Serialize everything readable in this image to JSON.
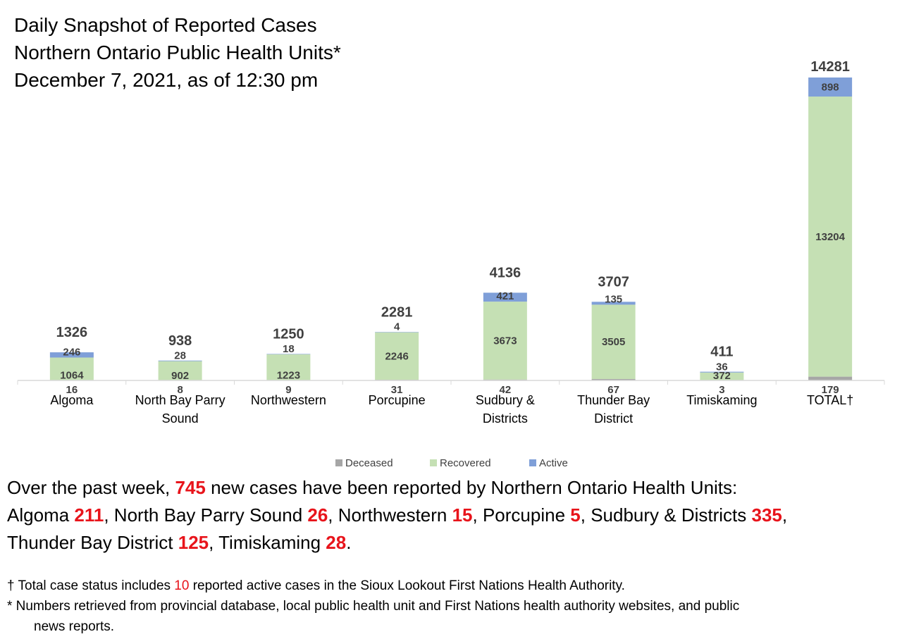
{
  "title": {
    "line1": "Daily Snapshot of Reported Cases",
    "line2": "Northern Ontario Public Health Units*",
    "line3": "December 7, 2021, as of 12:30 pm"
  },
  "chart_data": {
    "type": "bar",
    "stacked": true,
    "categories": [
      "Algoma",
      "North Bay Parry Sound",
      "Northwestern",
      "Porcupine",
      "Sudbury & Districts",
      "Thunder Bay District",
      "Timiskaming",
      "TOTAL†"
    ],
    "category_lines": [
      [
        "Algoma"
      ],
      [
        "North Bay Parry",
        "Sound"
      ],
      [
        "Northwestern"
      ],
      [
        "Porcupine"
      ],
      [
        "Sudbury &",
        "Districts"
      ],
      [
        "Thunder Bay",
        "District"
      ],
      [
        "Timiskaming"
      ],
      [
        "TOTAL†"
      ]
    ],
    "series": [
      {
        "name": "Deceased",
        "color": "#a6a6a6",
        "values": [
          16,
          8,
          9,
          31,
          42,
          67,
          3,
          179
        ]
      },
      {
        "name": "Recovered",
        "color": "#c5e0b4",
        "values": [
          1064,
          902,
          1223,
          2246,
          3673,
          3505,
          372,
          13204
        ]
      },
      {
        "name": "Active",
        "color": "#7f9fd8",
        "values": [
          246,
          28,
          18,
          4,
          421,
          135,
          36,
          898
        ]
      }
    ],
    "totals": [
      1326,
      938,
      1250,
      2281,
      4136,
      3707,
      411,
      14281
    ],
    "ylim": [
      0,
      14281
    ],
    "grid": false,
    "legend": "bottom"
  },
  "summary": {
    "line1_pre": "Over the past week, ",
    "line1_num": "745",
    "line1_post": " new cases have been reported by Northern Ontario Health Units:",
    "items": [
      {
        "name": "Algoma ",
        "num": "211",
        "sep": ", "
      },
      {
        "name": "North Bay Parry Sound ",
        "num": "26",
        "sep": ", "
      },
      {
        "name": "Northwestern ",
        "num": "15",
        "sep": ", "
      },
      {
        "name": "Porcupine ",
        "num": "5",
        "sep": ", "
      },
      {
        "name": "Sudbury & Districts ",
        "num": "335",
        "sep": ","
      },
      {
        "name": "Thunder Bay District ",
        "num": "125",
        "sep": ", "
      },
      {
        "name": "Timiskaming ",
        "num": "28",
        "sep": "."
      }
    ]
  },
  "footnotes": {
    "dagger_pre": "† Total case status includes ",
    "dagger_num": "10",
    "dagger_post": " reported active cases in the Sioux Lookout First Nations Health Authority.",
    "star_line1": "* Numbers retrieved from provincial database, local public health unit and First Nations health authority websites, and public",
    "star_line2": "news reports."
  }
}
